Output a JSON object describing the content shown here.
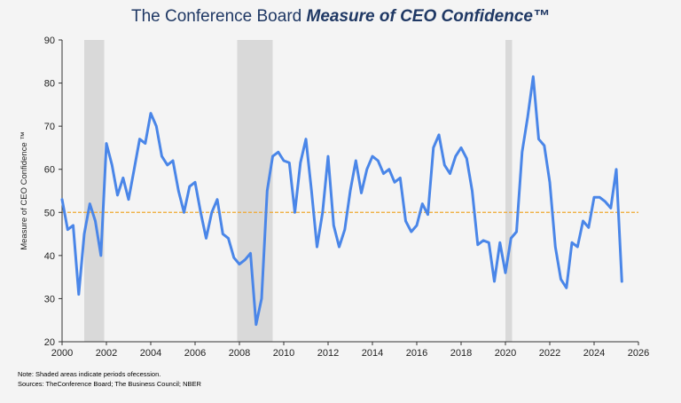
{
  "title": {
    "plain": "The Conference Board ",
    "emphasis": "Measure of CEO Confidence™"
  },
  "notes": {
    "line1": "Note: Shaded areas indicate periods ofecession.",
    "line2": "Sources: TheConference Board; The Business Council; NBER"
  },
  "colors": {
    "line": "#4a86e8",
    "reference": "#f0a830",
    "recession": "#d9d9d9",
    "axis": "#333333",
    "title": "#1f3864"
  },
  "chart_data": {
    "type": "line",
    "ylabel": "Measure of CEO Confidence ™",
    "xlabel": "",
    "xlim": [
      2000,
      2026
    ],
    "ylim": [
      20,
      90
    ],
    "x_ticks": [
      2000,
      2002,
      2004,
      2006,
      2008,
      2010,
      2012,
      2014,
      2016,
      2018,
      2020,
      2022,
      2024,
      2026
    ],
    "y_ticks": [
      20,
      30,
      40,
      50,
      60,
      70,
      80,
      90
    ],
    "grid": false,
    "reference_line": 50,
    "recessions": [
      [
        2001.0,
        2001.9
      ],
      [
        2007.9,
        2009.5
      ],
      [
        2020.0,
        2020.3
      ]
    ],
    "series": [
      {
        "x": [
          2000.0,
          2000.25,
          2000.5,
          2000.75,
          2001.0,
          2001.25,
          2001.5,
          2001.75,
          2002.0,
          2002.25,
          2002.5,
          2002.75,
          2003.0,
          2003.25,
          2003.5,
          2003.75,
          2004.0,
          2004.25,
          2004.5,
          2004.75,
          2005.0,
          2005.25,
          2005.5,
          2005.75,
          2006.0,
          2006.25,
          2006.5,
          2006.75,
          2007.0,
          2007.25,
          2007.5,
          2007.75,
          2008.0,
          2008.25,
          2008.5,
          2008.75,
          2009.0,
          2009.25,
          2009.5,
          2009.75,
          2010.0,
          2010.25,
          2010.5,
          2010.75,
          2011.0,
          2011.25,
          2011.5,
          2011.75,
          2012.0,
          2012.25,
          2012.5,
          2012.75,
          2013.0,
          2013.25,
          2013.5,
          2013.75,
          2014.0,
          2014.25,
          2014.5,
          2014.75,
          2015.0,
          2015.25,
          2015.5,
          2015.75,
          2016.0,
          2016.25,
          2016.5,
          2016.75,
          2017.0,
          2017.25,
          2017.5,
          2017.75,
          2018.0,
          2018.25,
          2018.5,
          2018.75,
          2019.0,
          2019.25,
          2019.5,
          2019.75,
          2020.0,
          2020.25,
          2020.5,
          2020.75,
          2021.0,
          2021.25,
          2021.5,
          2021.75,
          2022.0,
          2022.25,
          2022.5,
          2022.75,
          2023.0,
          2023.25,
          2023.5,
          2023.75,
          2024.0,
          2024.25,
          2024.5,
          2024.75,
          2025.0,
          2025.25
        ],
        "y": [
          53,
          46,
          47,
          31,
          45,
          52,
          48,
          40,
          66,
          61,
          54,
          58,
          53,
          60,
          67,
          66,
          73,
          70,
          63,
          61,
          62,
          55,
          50,
          56,
          57,
          50,
          44,
          50,
          53,
          45,
          44,
          39.5,
          38,
          39,
          40.5,
          24,
          30,
          55,
          63,
          64,
          62,
          61.5,
          50,
          61.5,
          67,
          55,
          42,
          50,
          63,
          47,
          42,
          46,
          55,
          62,
          54.5,
          60,
          63,
          62,
          59,
          60,
          57,
          58,
          48,
          45.5,
          47,
          52,
          49.5,
          65,
          68,
          61,
          59,
          63,
          65,
          62.5,
          55,
          42.5,
          43.5,
          43,
          34,
          43,
          36,
          44,
          45.5,
          64,
          72,
          81.5,
          67,
          65.5,
          57,
          42,
          34.5,
          32.5,
          43,
          42,
          48,
          46.5,
          53.5,
          53.5,
          52.5,
          51,
          60,
          34
        ]
      }
    ]
  }
}
